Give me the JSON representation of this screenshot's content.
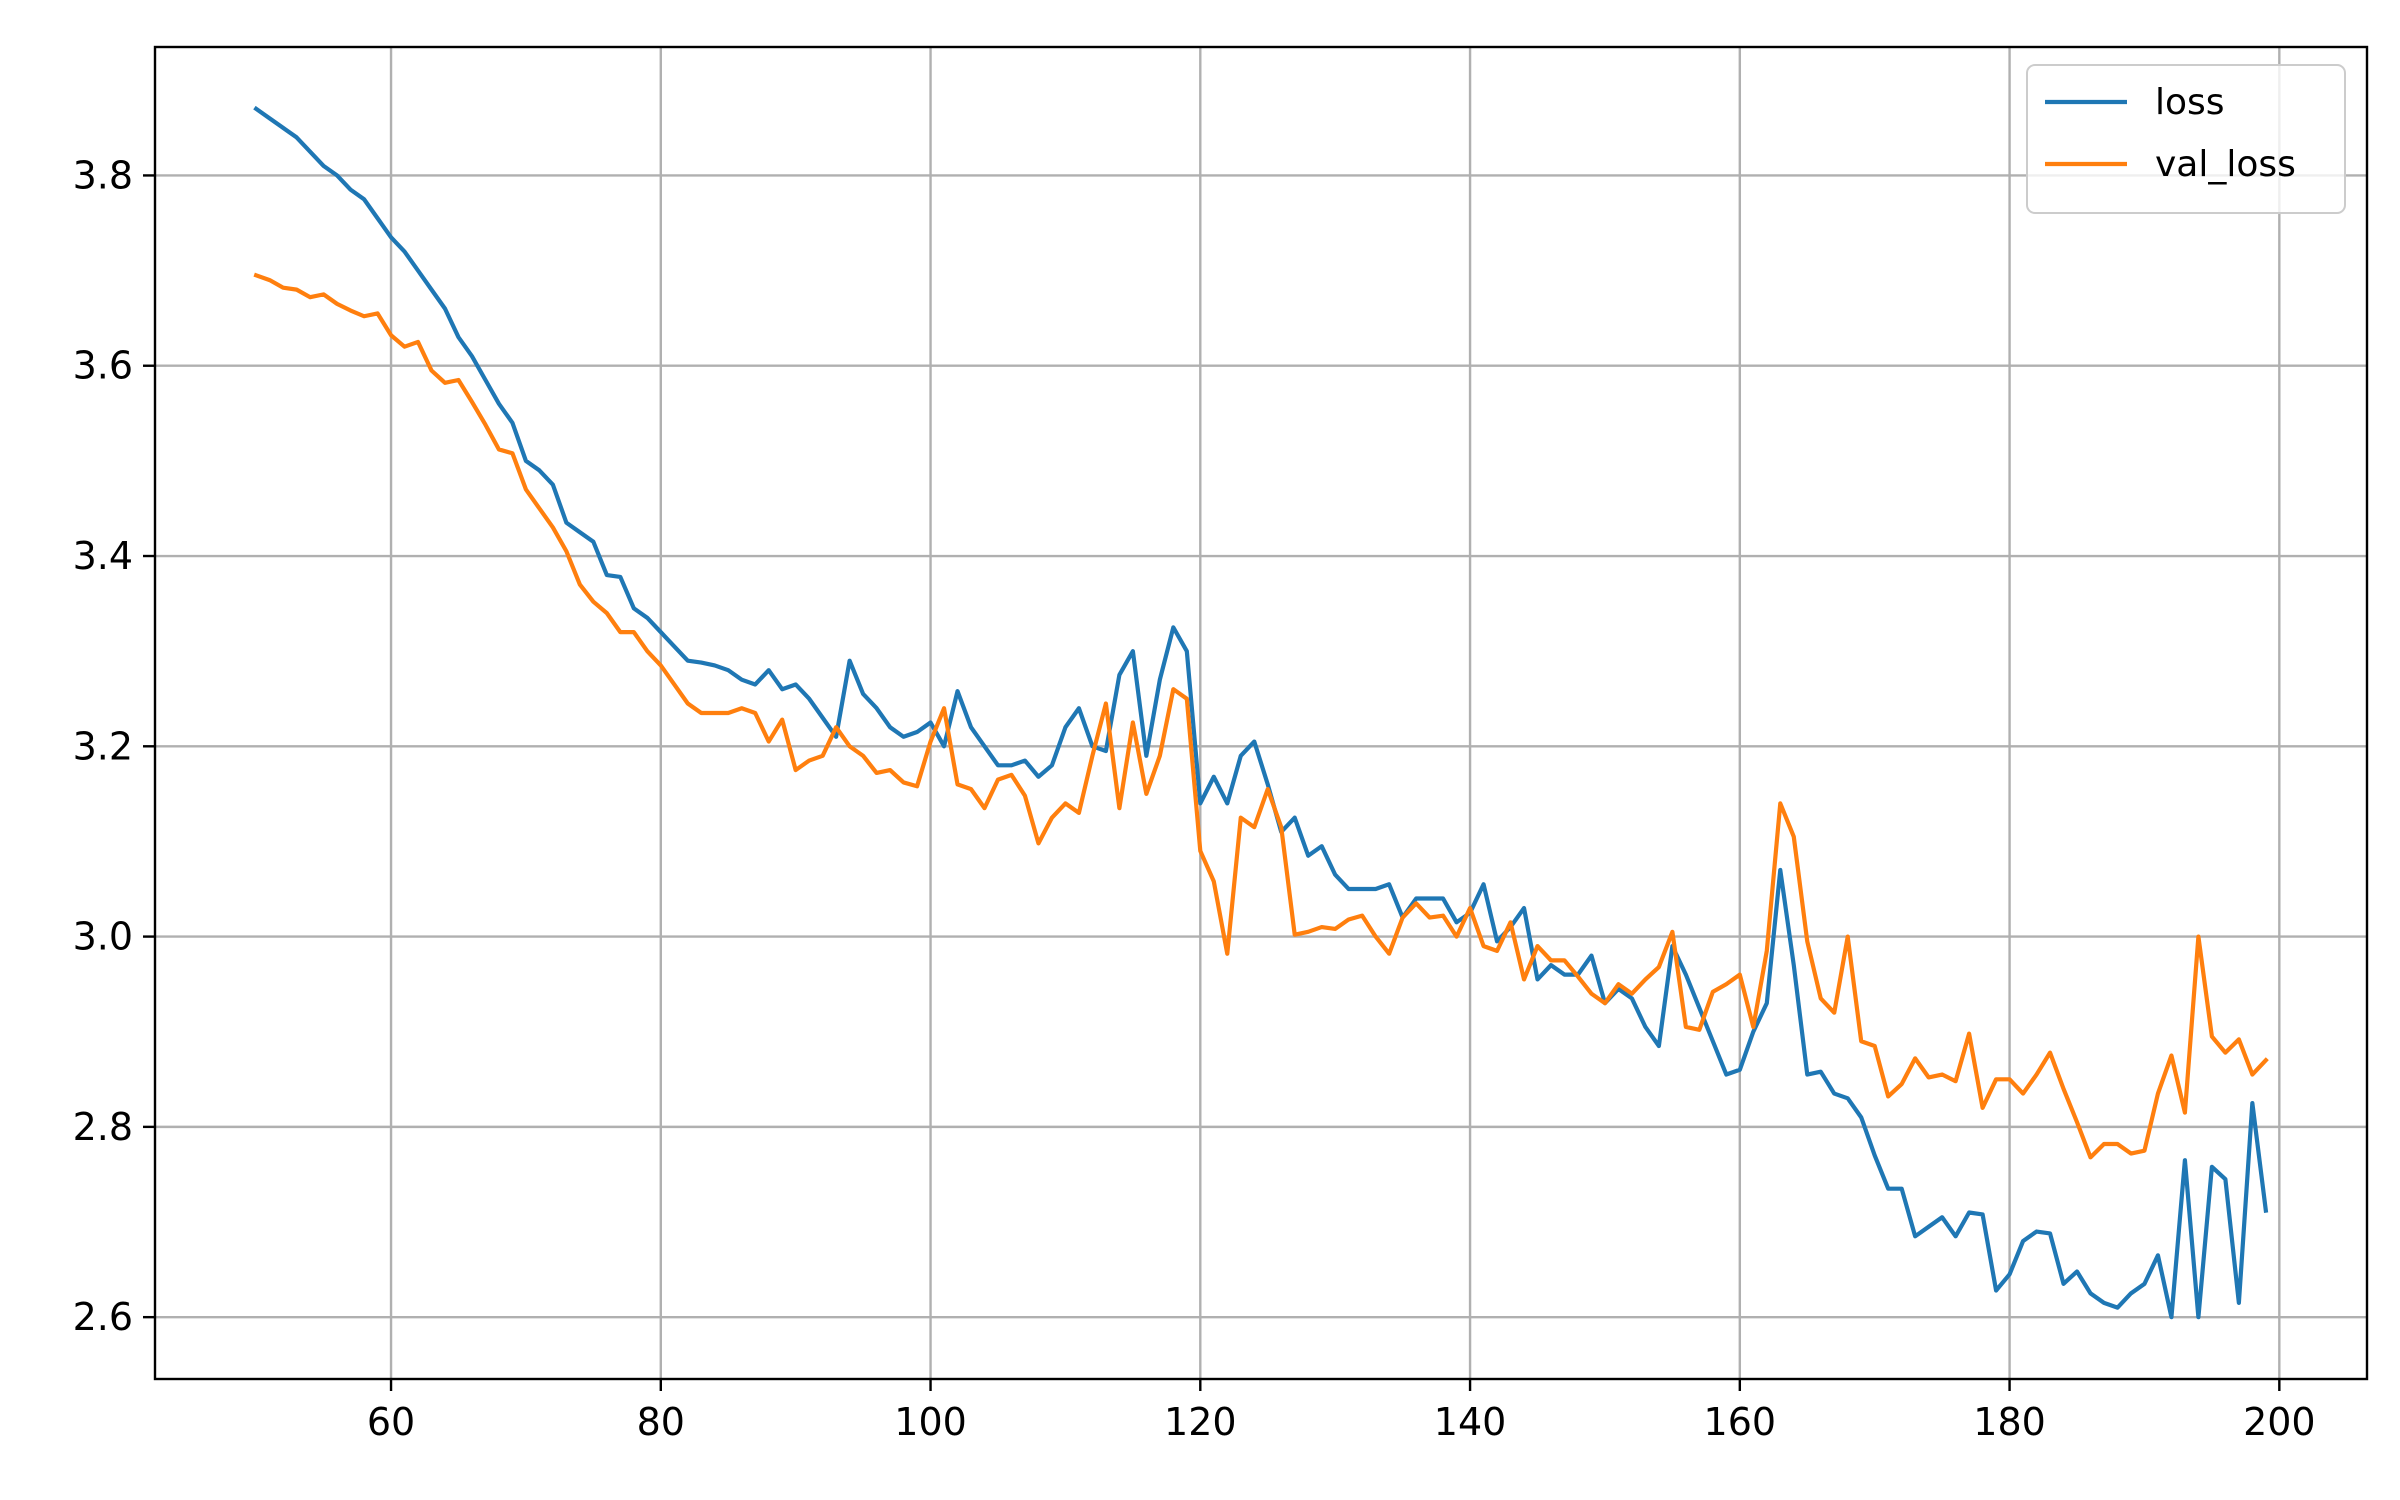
{
  "chart_data": {
    "type": "line",
    "title": "",
    "xlabel": "",
    "ylabel": "",
    "xlim": [
      42.5,
      206.5
    ],
    "ylim": [
      2.535,
      3.935
    ],
    "xticks": [
      60,
      80,
      100,
      120,
      140,
      160,
      180,
      200
    ],
    "yticks": [
      2.6,
      2.8,
      3.0,
      3.2,
      3.4,
      3.6,
      3.8
    ],
    "grid": true,
    "legend_position": "top-right",
    "x": [
      50,
      51,
      52,
      53,
      54,
      55,
      56,
      57,
      58,
      59,
      60,
      61,
      62,
      63,
      64,
      65,
      66,
      67,
      68,
      69,
      70,
      71,
      72,
      73,
      74,
      75,
      76,
      77,
      78,
      79,
      80,
      81,
      82,
      83,
      84,
      85,
      86,
      87,
      88,
      89,
      90,
      91,
      92,
      93,
      94,
      95,
      96,
      97,
      98,
      99,
      100,
      101,
      102,
      103,
      104,
      105,
      106,
      107,
      108,
      109,
      110,
      111,
      112,
      113,
      114,
      115,
      116,
      117,
      118,
      119,
      120,
      121,
      122,
      123,
      124,
      125,
      126,
      127,
      128,
      129,
      130,
      131,
      132,
      133,
      134,
      135,
      136,
      137,
      138,
      139,
      140,
      141,
      142,
      143,
      144,
      145,
      146,
      147,
      148,
      149,
      150,
      151,
      152,
      153,
      154,
      155,
      156,
      157,
      158,
      159,
      160,
      161,
      162,
      163,
      164,
      165,
      166,
      167,
      168,
      169,
      170,
      171,
      172,
      173,
      174,
      175,
      176,
      177,
      178,
      179,
      180,
      181,
      182,
      183,
      184,
      185,
      186,
      187,
      188,
      189,
      190,
      191,
      192,
      193,
      194,
      195,
      196,
      197,
      198,
      199
    ],
    "series": [
      {
        "name": "loss",
        "color": "#1f77b4",
        "values": [
          3.87,
          3.86,
          3.85,
          3.84,
          3.825,
          3.81,
          3.8,
          3.785,
          3.775,
          3.755,
          3.735,
          3.72,
          3.7,
          3.68,
          3.66,
          3.63,
          3.61,
          3.585,
          3.56,
          3.54,
          3.5,
          3.49,
          3.475,
          3.435,
          3.425,
          3.415,
          3.38,
          3.378,
          3.345,
          3.335,
          3.32,
          3.305,
          3.29,
          3.288,
          3.285,
          3.28,
          3.27,
          3.265,
          3.28,
          3.26,
          3.265,
          3.25,
          3.23,
          3.21,
          3.29,
          3.255,
          3.24,
          3.22,
          3.21,
          3.215,
          3.225,
          3.2,
          3.258,
          3.22,
          3.2,
          3.18,
          3.18,
          3.185,
          3.168,
          3.18,
          3.22,
          3.24,
          3.2,
          3.195,
          3.275,
          3.3,
          3.19,
          3.27,
          3.325,
          3.3,
          3.14,
          3.168,
          3.14,
          3.19,
          3.205,
          3.16,
          3.11,
          3.125,
          3.085,
          3.095,
          3.065,
          3.05,
          3.05,
          3.05,
          3.055,
          3.02,
          3.04,
          3.04,
          3.04,
          3.015,
          3.025,
          3.055,
          2.995,
          3.01,
          3.03,
          2.955,
          2.97,
          2.96,
          2.96,
          2.98,
          2.93,
          2.945,
          2.935,
          2.905,
          2.885,
          2.99,
          2.96,
          2.925,
          2.89,
          2.855,
          2.86,
          2.9,
          2.93,
          3.07,
          2.97,
          2.855,
          2.858,
          2.835,
          2.83,
          2.81,
          2.77,
          2.735,
          2.735,
          2.685,
          2.695,
          2.705,
          2.685,
          2.71,
          2.708,
          2.628,
          2.645,
          2.68,
          2.69,
          2.688,
          2.635,
          2.648,
          2.625,
          2.615,
          2.61,
          2.625,
          2.635,
          2.665,
          2.6,
          2.765,
          2.6,
          2.758,
          2.745,
          2.615,
          2.825,
          2.712
        ]
      },
      {
        "name": "val_loss",
        "color": "#ff7f0e",
        "values": [
          3.695,
          3.69,
          3.682,
          3.68,
          3.672,
          3.675,
          3.665,
          3.658,
          3.652,
          3.655,
          3.632,
          3.62,
          3.625,
          3.595,
          3.582,
          3.585,
          3.562,
          3.538,
          3.512,
          3.508,
          3.47,
          3.45,
          3.43,
          3.405,
          3.37,
          3.352,
          3.34,
          3.32,
          3.32,
          3.3,
          3.285,
          3.265,
          3.245,
          3.235,
          3.235,
          3.235,
          3.24,
          3.235,
          3.205,
          3.228,
          3.175,
          3.185,
          3.19,
          3.22,
          3.2,
          3.19,
          3.172,
          3.175,
          3.162,
          3.158,
          3.205,
          3.24,
          3.16,
          3.155,
          3.135,
          3.165,
          3.17,
          3.148,
          3.098,
          3.125,
          3.14,
          3.13,
          3.19,
          3.245,
          3.135,
          3.225,
          3.15,
          3.19,
          3.26,
          3.25,
          3.09,
          3.058,
          2.982,
          3.125,
          3.115,
          3.155,
          3.115,
          3.002,
          3.005,
          3.01,
          3.008,
          3.018,
          3.022,
          3.0,
          2.982,
          3.02,
          3.035,
          3.02,
          3.022,
          3.0,
          3.03,
          2.99,
          2.985,
          3.015,
          2.955,
          2.99,
          2.975,
          2.975,
          2.958,
          2.94,
          2.93,
          2.95,
          2.94,
          2.955,
          2.968,
          3.005,
          2.905,
          2.902,
          2.942,
          2.95,
          2.96,
          2.905,
          2.985,
          3.14,
          3.105,
          2.995,
          2.935,
          2.92,
          3.0,
          2.89,
          2.885,
          2.832,
          2.845,
          2.872,
          2.852,
          2.855,
          2.848,
          2.898,
          2.82,
          2.85,
          2.85,
          2.835,
          2.855,
          2.878,
          2.84,
          2.805,
          2.768,
          2.782,
          2.782,
          2.772,
          2.775,
          2.835,
          2.875,
          2.815,
          3.0,
          2.895,
          2.878,
          2.892,
          2.855,
          2.87
        ]
      }
    ]
  }
}
